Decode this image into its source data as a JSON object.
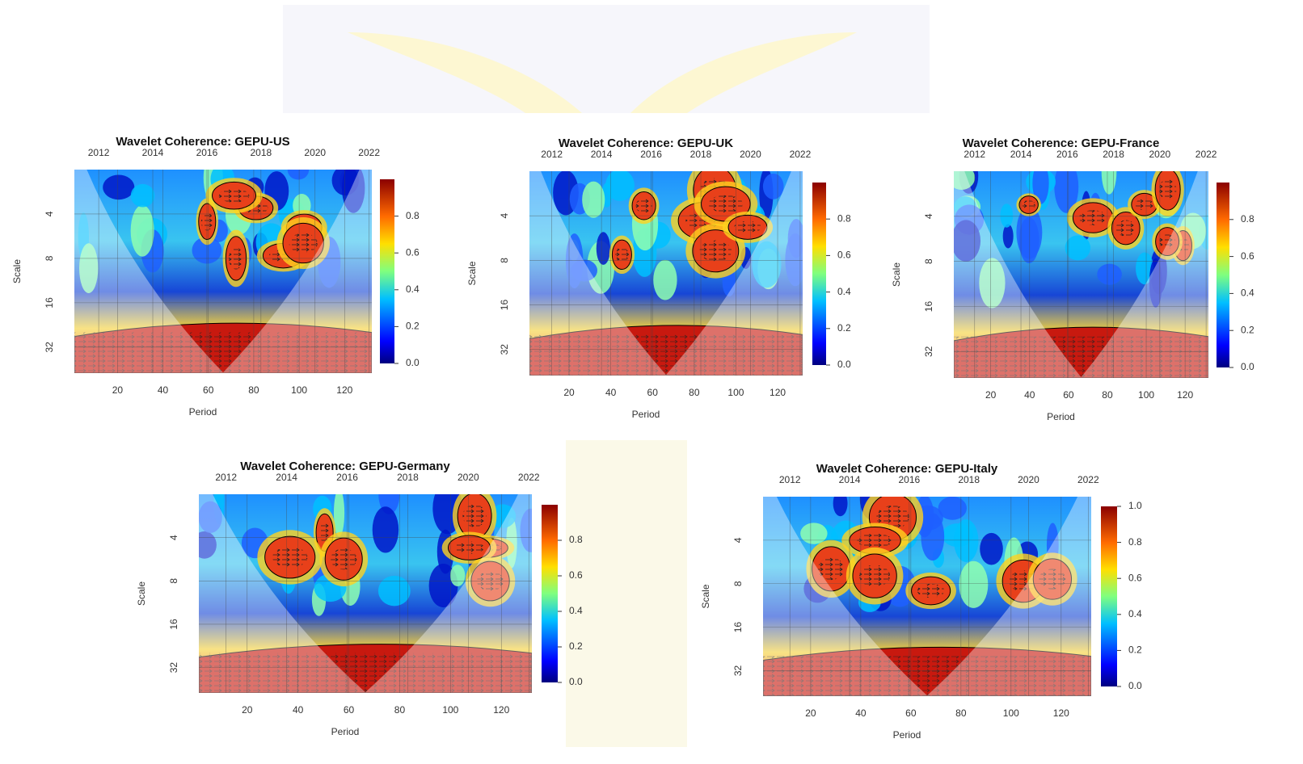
{
  "chart_data": [
    {
      "type": "heatmap",
      "title": "Wavelet Coherence: GEPU-US",
      "xlabel": "Period",
      "ylabel": "Scale",
      "xlim": [
        1,
        132
      ],
      "xticks": [
        20,
        40,
        60,
        80,
        100,
        120
      ],
      "x2lim": [
        2011.1,
        2022.1
      ],
      "x2ticks": [
        2012,
        2014,
        2016,
        2018,
        2020,
        2022
      ],
      "ylim": [
        2,
        48
      ],
      "ylog": true,
      "yticks": [
        4,
        8,
        16,
        32
      ],
      "zlim": [
        0,
        1
      ],
      "zticks": [
        {
          "value": 0,
          "label": "0.0"
        },
        {
          "value": 0.2,
          "label": "0.2"
        },
        {
          "value": 0.4,
          "label": "0.4"
        },
        {
          "value": 0.6,
          "label": "0.6"
        },
        {
          "value": 0.8,
          "label": "0.8"
        }
      ],
      "grid": true
    },
    {
      "type": "heatmap",
      "title": "Wavelet Coherence: GEPU-UK",
      "xlabel": "Period",
      "ylabel": "Scale",
      "xlim": [
        1,
        132
      ],
      "xticks": [
        20,
        40,
        60,
        80,
        100,
        120
      ],
      "x2lim": [
        2011.1,
        2022.1
      ],
      "x2ticks": [
        2012,
        2014,
        2016,
        2018,
        2020,
        2022
      ],
      "ylim": [
        2,
        48
      ],
      "ylog": true,
      "yticks": [
        4,
        8,
        16,
        32
      ],
      "zlim": [
        0,
        1
      ],
      "zticks": [
        {
          "value": 0,
          "label": "0.0"
        },
        {
          "value": 0.2,
          "label": "0.2"
        },
        {
          "value": 0.4,
          "label": "0.4"
        },
        {
          "value": 0.6,
          "label": "0.6"
        },
        {
          "value": 0.8,
          "label": "0.8"
        }
      ],
      "grid": true
    },
    {
      "type": "heatmap",
      "title": "Wavelet Coherence: GEPU-France",
      "xlabel": "Period",
      "ylabel": "Scale",
      "xlim": [
        1,
        132
      ],
      "xticks": [
        20,
        40,
        60,
        80,
        100,
        120
      ],
      "x2lim": [
        2011.1,
        2022.1
      ],
      "x2ticks": [
        2012,
        2014,
        2016,
        2018,
        2020,
        2022
      ],
      "ylim": [
        2,
        48
      ],
      "ylog": true,
      "yticks": [
        4,
        8,
        16,
        32
      ],
      "zlim": [
        0,
        1
      ],
      "zticks": [
        {
          "value": 0,
          "label": "0.0"
        },
        {
          "value": 0.2,
          "label": "0.2"
        },
        {
          "value": 0.4,
          "label": "0.4"
        },
        {
          "value": 0.6,
          "label": "0.6"
        },
        {
          "value": 0.8,
          "label": "0.8"
        }
      ],
      "grid": true
    },
    {
      "type": "heatmap",
      "title": "Wavelet Coherence: GEPU-Germany",
      "xlabel": "Period",
      "ylabel": "Scale",
      "xlim": [
        1,
        132
      ],
      "xticks": [
        20,
        40,
        60,
        80,
        100,
        120
      ],
      "x2lim": [
        2011.1,
        2022.1
      ],
      "x2ticks": [
        2012,
        2014,
        2016,
        2018,
        2020,
        2022
      ],
      "ylim": [
        2,
        48
      ],
      "ylog": true,
      "yticks": [
        4,
        8,
        16,
        32
      ],
      "zlim": [
        0,
        1
      ],
      "zticks": [
        {
          "value": 0,
          "label": "0.0"
        },
        {
          "value": 0.2,
          "label": "0.2"
        },
        {
          "value": 0.4,
          "label": "0.4"
        },
        {
          "value": 0.6,
          "label": "0.6"
        },
        {
          "value": 0.8,
          "label": "0.8"
        }
      ],
      "grid": true
    },
    {
      "type": "heatmap",
      "title": "Wavelet Coherence: GEPU-Italy",
      "xlabel": "Period",
      "ylabel": "Scale",
      "xlim": [
        1,
        132
      ],
      "xticks": [
        20,
        40,
        60,
        80,
        100,
        120
      ],
      "x2lim": [
        2011.1,
        2022.1
      ],
      "x2ticks": [
        2012,
        2014,
        2016,
        2018,
        2020,
        2022
      ],
      "ylim": [
        2,
        48
      ],
      "ylog": true,
      "yticks": [
        4,
        8,
        16,
        32
      ],
      "zlim": [
        0,
        1
      ],
      "zticks": [
        {
          "value": 0,
          "label": "0.0"
        },
        {
          "value": 0.2,
          "label": "0.2"
        },
        {
          "value": 0.4,
          "label": "0.4"
        },
        {
          "value": 0.6,
          "label": "0.6"
        },
        {
          "value": 0.8,
          "label": "0.8"
        },
        {
          "value": 1,
          "label": "1.0"
        }
      ],
      "grid": true
    }
  ]
}
